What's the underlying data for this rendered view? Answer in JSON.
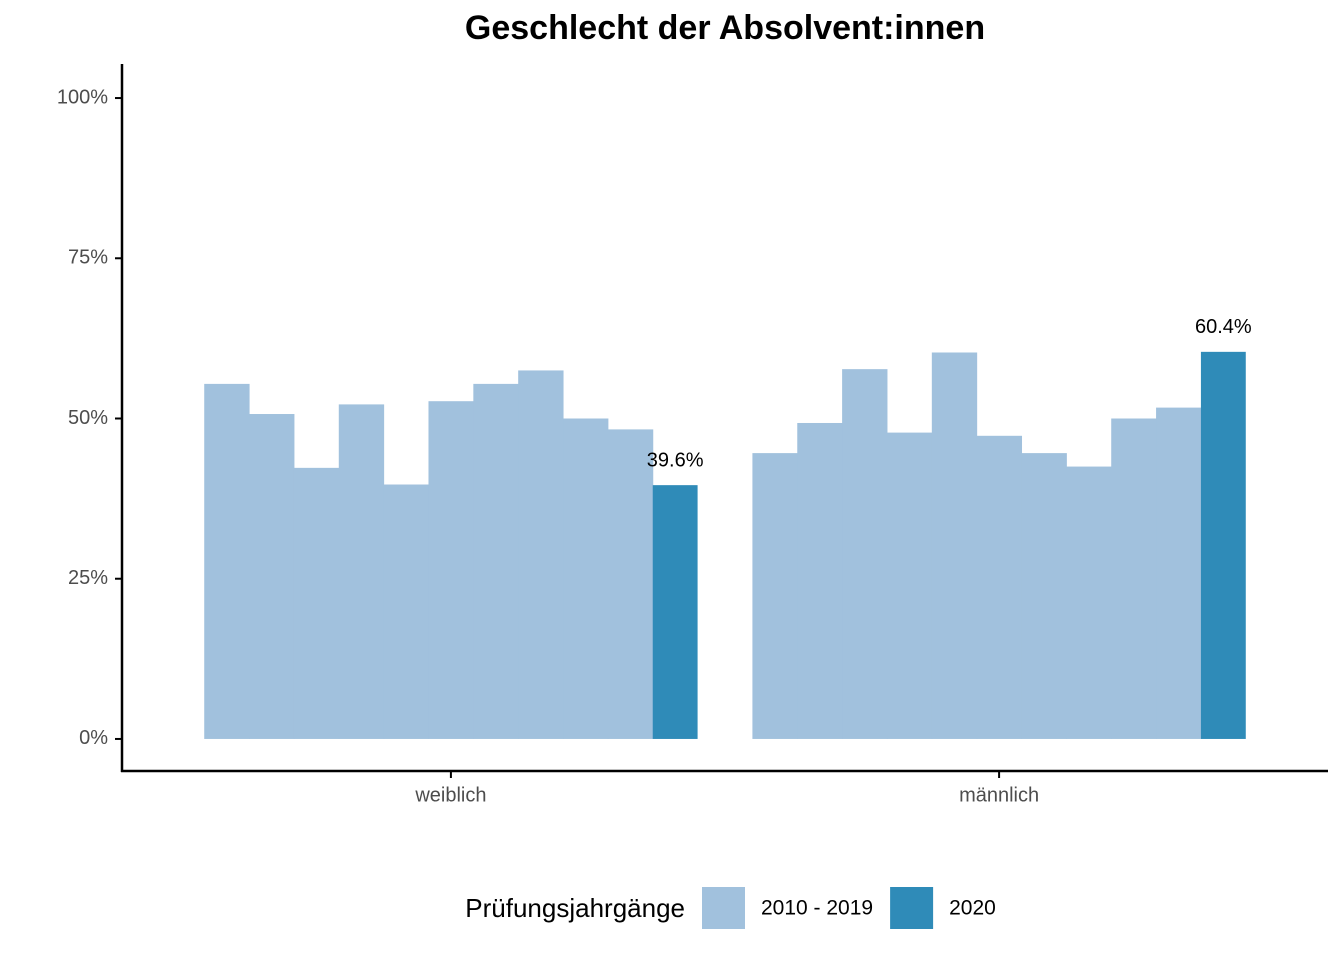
{
  "chart_data": {
    "type": "bar",
    "title": "Geschlecht der Absolvent:innen",
    "categories": [
      "weiblich",
      "männlich"
    ],
    "series": [
      {
        "name": "2010 - 2019",
        "color": "#a1c1dd",
        "values": [
          [
            55.4,
            50.7,
            42.3,
            52.2,
            39.7,
            52.7,
            55.4,
            57.5,
            50.0,
            48.3
          ],
          [
            44.6,
            49.3,
            57.7,
            47.8,
            60.3,
            47.3,
            44.6,
            42.5,
            50.0,
            51.7
          ]
        ]
      },
      {
        "name": "2020",
        "color": "#2f8bb8",
        "values": [
          39.6,
          60.4
        ],
        "value_labels": [
          "39.6%",
          "60.4%"
        ]
      }
    ],
    "legend_title": "Prüfungsjahrgänge",
    "ylim": [
      -5,
      105
    ],
    "yticks": [
      {
        "value": 0,
        "label": "0%"
      },
      {
        "value": 25,
        "label": "25%"
      },
      {
        "value": 50,
        "label": "50%"
      },
      {
        "value": 75,
        "label": "75%"
      },
      {
        "value": 100,
        "label": "100%"
      }
    ],
    "grid": false,
    "legend": "bottom"
  }
}
